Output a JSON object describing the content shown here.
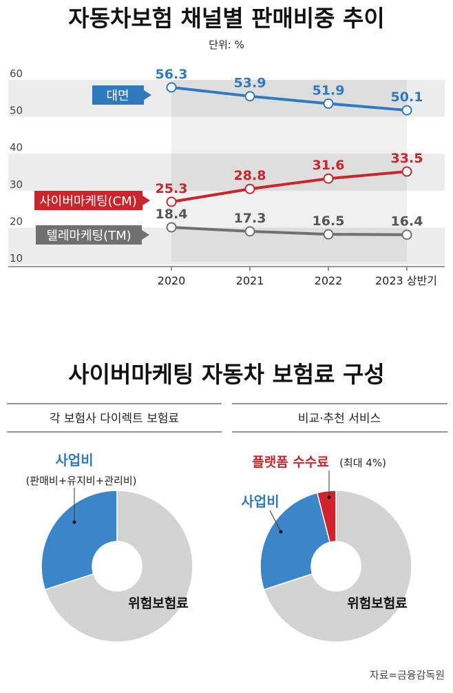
{
  "chart_data": [
    {
      "type": "line",
      "title": "자동차보험 채널별 판매비중 추이",
      "unit": "단위: %",
      "categories": [
        "2020",
        "2021",
        "2022",
        "2023 상반기"
      ],
      "y_ticks": [
        "60",
        "50",
        "40",
        "30",
        "20",
        "10"
      ],
      "ylim": [
        10,
        60
      ],
      "grid": false,
      "series": [
        {
          "name": "대면",
          "color": "#2f7abf",
          "values": [
            56.3,
            53.9,
            51.9,
            50.1
          ],
          "labels": [
            "56.3",
            "53.9",
            "51.9",
            "50.1"
          ]
        },
        {
          "name": "사이버마케팅(CM)",
          "color": "#c8252c",
          "values": [
            25.3,
            28.8,
            31.6,
            33.5
          ],
          "labels": [
            "25.3",
            "28.8",
            "31.6",
            "33.5"
          ]
        },
        {
          "name": "텔레마케팅(TM)",
          "color": "#707070",
          "values": [
            18.4,
            17.3,
            16.5,
            16.4
          ],
          "labels": [
            "18.4",
            "17.3",
            "16.5",
            "16.4"
          ]
        }
      ]
    },
    {
      "type": "pie",
      "title": "사이버마케팅 자동차 보험료 구성",
      "panels": [
        {
          "heading": "각 보험사 다이렉트 보험료",
          "slices": [
            {
              "label": "사업비",
              "sublabel": "(판매비+유지비+관리비)",
              "value": 30,
              "color": "#3a86c8"
            },
            {
              "label": "위험보험료",
              "value": 70,
              "color": "#d3d3d3"
            }
          ]
        },
        {
          "heading": "비교·추천 서비스",
          "slices": [
            {
              "label": "플랫폼 수수료",
              "sublabel": "(최대 4%)",
              "value": 4,
              "color": "#d1232a"
            },
            {
              "label": "사업비",
              "value": 26,
              "color": "#3a86c8"
            },
            {
              "label": "위험보험료",
              "value": 70,
              "color": "#d3d3d3"
            }
          ]
        }
      ]
    }
  ],
  "source": "자료=금융감독원"
}
